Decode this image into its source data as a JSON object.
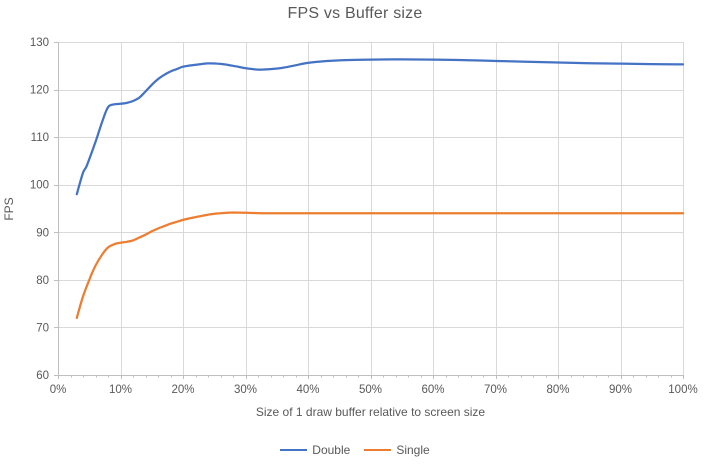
{
  "chart_data": {
    "type": "line",
    "title": "FPS vs Buffer size",
    "xlabel": "Size of 1 draw buffer relative to screen size",
    "ylabel": "FPS",
    "xlim": [
      0,
      100
    ],
    "ylim": [
      60,
      130
    ],
    "x_major_ticks": [
      0,
      10,
      20,
      30,
      40,
      50,
      60,
      70,
      80,
      90,
      100
    ],
    "x_tick_labels": [
      "0%",
      "10%",
      "20%",
      "30%",
      "40%",
      "50%",
      "60%",
      "70%",
      "80%",
      "90%",
      "100%"
    ],
    "x_minor_step": 2,
    "y_ticks": [
      60,
      70,
      80,
      90,
      100,
      110,
      120,
      130
    ],
    "grid": true,
    "legend_position": "bottom",
    "colors": {
      "grid": "#D9D9D9",
      "axis": "#BFBFBF",
      "text": "#595959"
    },
    "series": [
      {
        "name": "Double",
        "color": "#4472C4",
        "points": [
          [
            3,
            98
          ],
          [
            4,
            102.5
          ],
          [
            4.6,
            104
          ],
          [
            6,
            109
          ],
          [
            7,
            113
          ],
          [
            8,
            116.3
          ],
          [
            9,
            116.9
          ],
          [
            10,
            117
          ],
          [
            11,
            117.2
          ],
          [
            12,
            117.6
          ],
          [
            13,
            118.3
          ],
          [
            14,
            119.6
          ],
          [
            15,
            121
          ],
          [
            16,
            122.2
          ],
          [
            17,
            123.1
          ],
          [
            18,
            123.8
          ],
          [
            19,
            124.3
          ],
          [
            20,
            124.8
          ],
          [
            22,
            125.2
          ],
          [
            24,
            125.5
          ],
          [
            26,
            125.4
          ],
          [
            28,
            125
          ],
          [
            30,
            124.5
          ],
          [
            32,
            124.2
          ],
          [
            34,
            124.3
          ],
          [
            36,
            124.6
          ],
          [
            38,
            125.1
          ],
          [
            40,
            125.6
          ],
          [
            43,
            126
          ],
          [
            46,
            126.2
          ],
          [
            50,
            126.3
          ],
          [
            55,
            126.35
          ],
          [
            60,
            126.3
          ],
          [
            65,
            126.2
          ],
          [
            70,
            126
          ],
          [
            75,
            125.85
          ],
          [
            80,
            125.7
          ],
          [
            85,
            125.55
          ],
          [
            90,
            125.45
          ],
          [
            95,
            125.35
          ],
          [
            100,
            125.3
          ]
        ]
      },
      {
        "name": "Single",
        "color": "#ED7D31",
        "points": [
          [
            3,
            72
          ],
          [
            4,
            76.5
          ],
          [
            5,
            80
          ],
          [
            6,
            83
          ],
          [
            7,
            85.2
          ],
          [
            8,
            86.8
          ],
          [
            9,
            87.5
          ],
          [
            10,
            87.8
          ],
          [
            11,
            88
          ],
          [
            12,
            88.3
          ],
          [
            13,
            88.9
          ],
          [
            14,
            89.5
          ],
          [
            15,
            90.2
          ],
          [
            16,
            90.8
          ],
          [
            17,
            91.3
          ],
          [
            18,
            91.8
          ],
          [
            19,
            92.2
          ],
          [
            20,
            92.6
          ],
          [
            22,
            93.2
          ],
          [
            24,
            93.7
          ],
          [
            26,
            94
          ],
          [
            28,
            94.15
          ],
          [
            30,
            94.1
          ],
          [
            33,
            94
          ],
          [
            36,
            94
          ],
          [
            40,
            94
          ],
          [
            45,
            94
          ],
          [
            50,
            94
          ],
          [
            55,
            94
          ],
          [
            60,
            94
          ],
          [
            65,
            94
          ],
          [
            70,
            94
          ],
          [
            75,
            94
          ],
          [
            80,
            94
          ],
          [
            85,
            94
          ],
          [
            90,
            94
          ],
          [
            95,
            94
          ],
          [
            100,
            94
          ]
        ]
      }
    ]
  }
}
